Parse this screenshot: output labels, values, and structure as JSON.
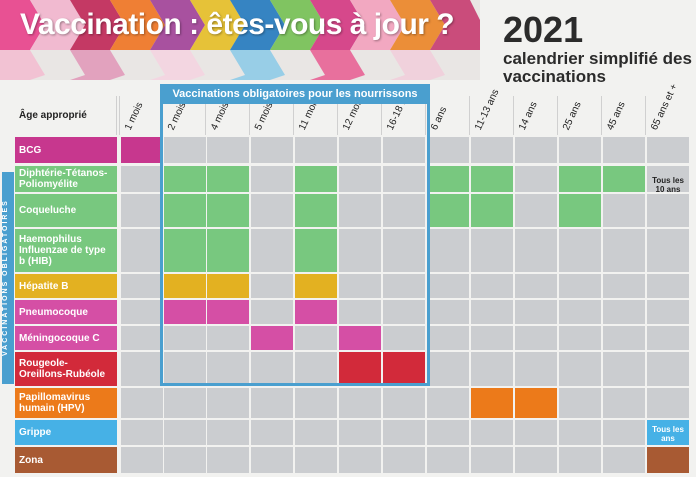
{
  "header": {
    "title": "Vaccination : êtes-vous à jour ?",
    "year": "2021",
    "subtitle": "calendrier simplifié des vaccinations"
  },
  "table": {
    "age_label": "Âge approprié",
    "obligatory_infant_label": "Vaccinations obligatoires pour les nourrissons",
    "obligatory_side_label": "VACCINATIONS OBLIGATOIRES",
    "ages": [
      "1 mois",
      "2 mois",
      "4 mois",
      "5 mois",
      "11 mois",
      "12 mois",
      "16-18 mois",
      "6 ans",
      "11-13 ans",
      "14 ans",
      "25 ans",
      "45 ans",
      "65 ans et +"
    ],
    "rows": [
      {
        "label": "BCG",
        "color": "#c7378e",
        "cells": [
          0
        ]
      },
      {
        "label": "Diphtérie-Tétanos-Poliomyélite",
        "color": "#78c87f",
        "cells": [
          1,
          2,
          4,
          7,
          8,
          10,
          11
        ]
      },
      {
        "label": "Coqueluche",
        "color": "#78c87f",
        "cells": [
          1,
          2,
          4,
          7,
          8,
          10
        ]
      },
      {
        "label": "Haemophilus Influenzae de type b (HIB)",
        "color": "#78c87f",
        "cells": [
          1,
          2,
          4
        ]
      },
      {
        "label": "Hépatite B",
        "color": "#e3b121",
        "cells": [
          1,
          2,
          4
        ]
      },
      {
        "label": "Pneumocoque",
        "color": "#d54fa5",
        "cells": [
          1,
          2,
          4
        ]
      },
      {
        "label": "Méningocoque C",
        "color": "#d54fa5",
        "cells": [
          3,
          5
        ]
      },
      {
        "label": "Rougeole-Oreillons-Rubéole",
        "color": "#d22a3a",
        "cells": [
          5,
          6
        ]
      },
      {
        "label": "Papillomavirus humain (HPV)",
        "color": "#ec7a1a",
        "cells": [
          8,
          9
        ]
      },
      {
        "label": "Grippe",
        "color": "#46b1e6",
        "cells": [
          12
        ]
      },
      {
        "label": "Zona",
        "color": "#a85a33",
        "cells": [
          12
        ]
      }
    ],
    "notes": {
      "dtp_65": "Tous les 10 ans",
      "grippe_65": "Tous les ans"
    }
  }
}
